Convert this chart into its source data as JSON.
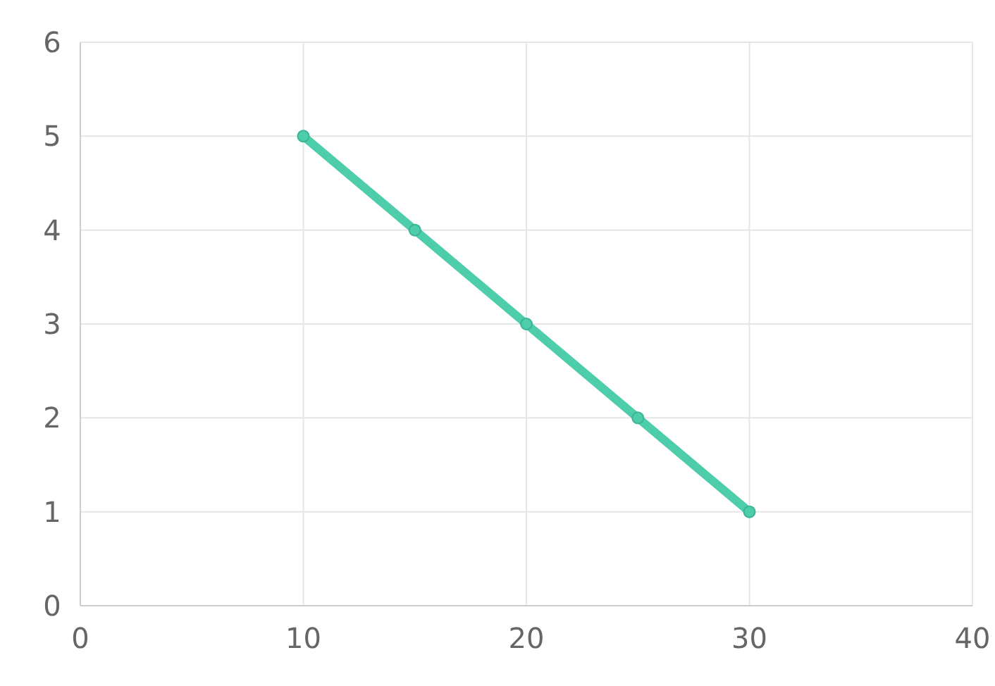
{
  "chart_data": {
    "type": "line",
    "x": [
      10,
      15,
      20,
      25,
      30
    ],
    "series": [
      {
        "color": "#4ecdaa",
        "values": [
          5,
          4,
          3,
          2,
          1
        ]
      }
    ],
    "xlim": [
      0,
      40
    ],
    "xticks": [
      0,
      10,
      20,
      30,
      40
    ],
    "ylim": [
      0,
      6
    ],
    "yticks": [
      0,
      1,
      2,
      3,
      4,
      5,
      6
    ],
    "grid": true,
    "marker": "circle",
    "line_style": "solid"
  }
}
